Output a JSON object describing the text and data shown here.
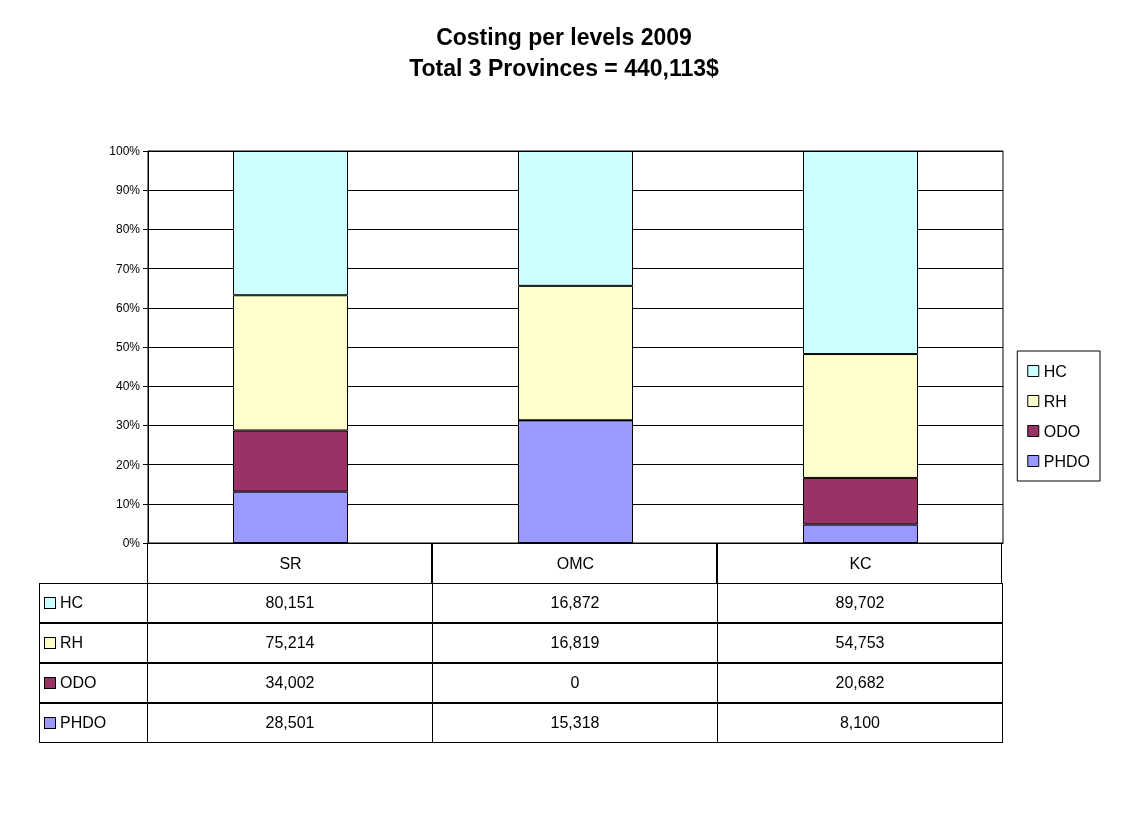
{
  "chart_data": {
    "type": "bar",
    "title": "Costing per levels 2009",
    "subtitle": "Total 3 Provinces = 440,113$",
    "categories": [
      "SR",
      "OMC",
      "KC"
    ],
    "stacked": true,
    "ylim": [
      0,
      100
    ],
    "yticks": [
      {
        "value": 0,
        "label": "0%"
      },
      {
        "value": 10,
        "label": "10%"
      },
      {
        "value": 20,
        "label": "20%"
      },
      {
        "value": 30,
        "label": "30%"
      },
      {
        "value": 40,
        "label": "40%"
      },
      {
        "value": 50,
        "label": "50%"
      },
      {
        "value": 60,
        "label": "60%"
      },
      {
        "value": 70,
        "label": "70%"
      },
      {
        "value": 80,
        "label": "80%"
      },
      {
        "value": 90,
        "label": "90%"
      },
      {
        "value": 100,
        "label": "100%"
      }
    ],
    "grid": "y",
    "legend": "right",
    "series": [
      {
        "name": "PHDO",
        "color": "#9999ff",
        "values": [
          13.1,
          31.3,
          4.7
        ]
      },
      {
        "name": "ODO",
        "color": "#993366",
        "values": [
          15.6,
          0,
          11.9
        ]
      },
      {
        "name": "RH",
        "color": "#ffffcc",
        "values": [
          34.5,
          34.3,
          31.6
        ]
      },
      {
        "name": "HC",
        "color": "#ccffff",
        "values": [
          36.8,
          34.4,
          51.8
        ]
      }
    ],
    "annotations": [
      "80,151",
      "16,872",
      "89,702",
      "75,214",
      "16,819",
      "54,753",
      "34,002",
      "0",
      "20,682",
      "28,501",
      "15,318",
      "8,100"
    ]
  }
}
